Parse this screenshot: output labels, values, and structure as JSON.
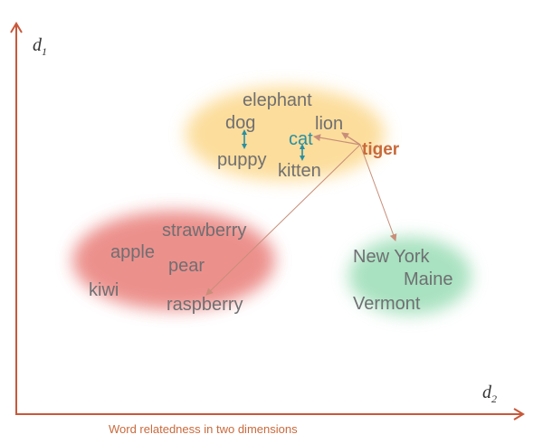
{
  "axes": {
    "y": {
      "symbol": "d",
      "subscript": "1"
    },
    "x": {
      "symbol": "d",
      "subscript": "2"
    }
  },
  "caption": "Word relatedness in two dimensions",
  "colors": {
    "axis": "#c8583a",
    "animals_cluster": "#fbd27a",
    "fruits_cluster": "#e4625c",
    "places_cluster": "#6fcf97",
    "word": "#6f6f72",
    "cat_word": "#2a8fa1",
    "tiger_word": "#c8693a",
    "arrow": "#c88e7a"
  },
  "clusters": {
    "animals": {
      "words": {
        "elephant": "elephant",
        "dog": "dog",
        "lion": "lion",
        "cat": "cat",
        "puppy": "puppy",
        "kitten": "kitten",
        "tiger": "tiger"
      }
    },
    "fruits": {
      "words": {
        "strawberry": "strawberry",
        "apple": "apple",
        "pear": "pear",
        "kiwi": "kiwi",
        "raspberry": "raspberry"
      }
    },
    "places": {
      "words": {
        "new_york": "New York",
        "maine": "Maine",
        "vermont": "Vermont"
      }
    }
  },
  "relations": [
    {
      "from": "tiger",
      "to": "lion"
    },
    {
      "from": "tiger",
      "to": "cat"
    },
    {
      "from": "tiger",
      "to": "raspberry"
    },
    {
      "from": "tiger",
      "to": "new_york"
    },
    {
      "from": "dog",
      "to": "puppy"
    },
    {
      "from": "cat",
      "to": "kitten"
    }
  ]
}
